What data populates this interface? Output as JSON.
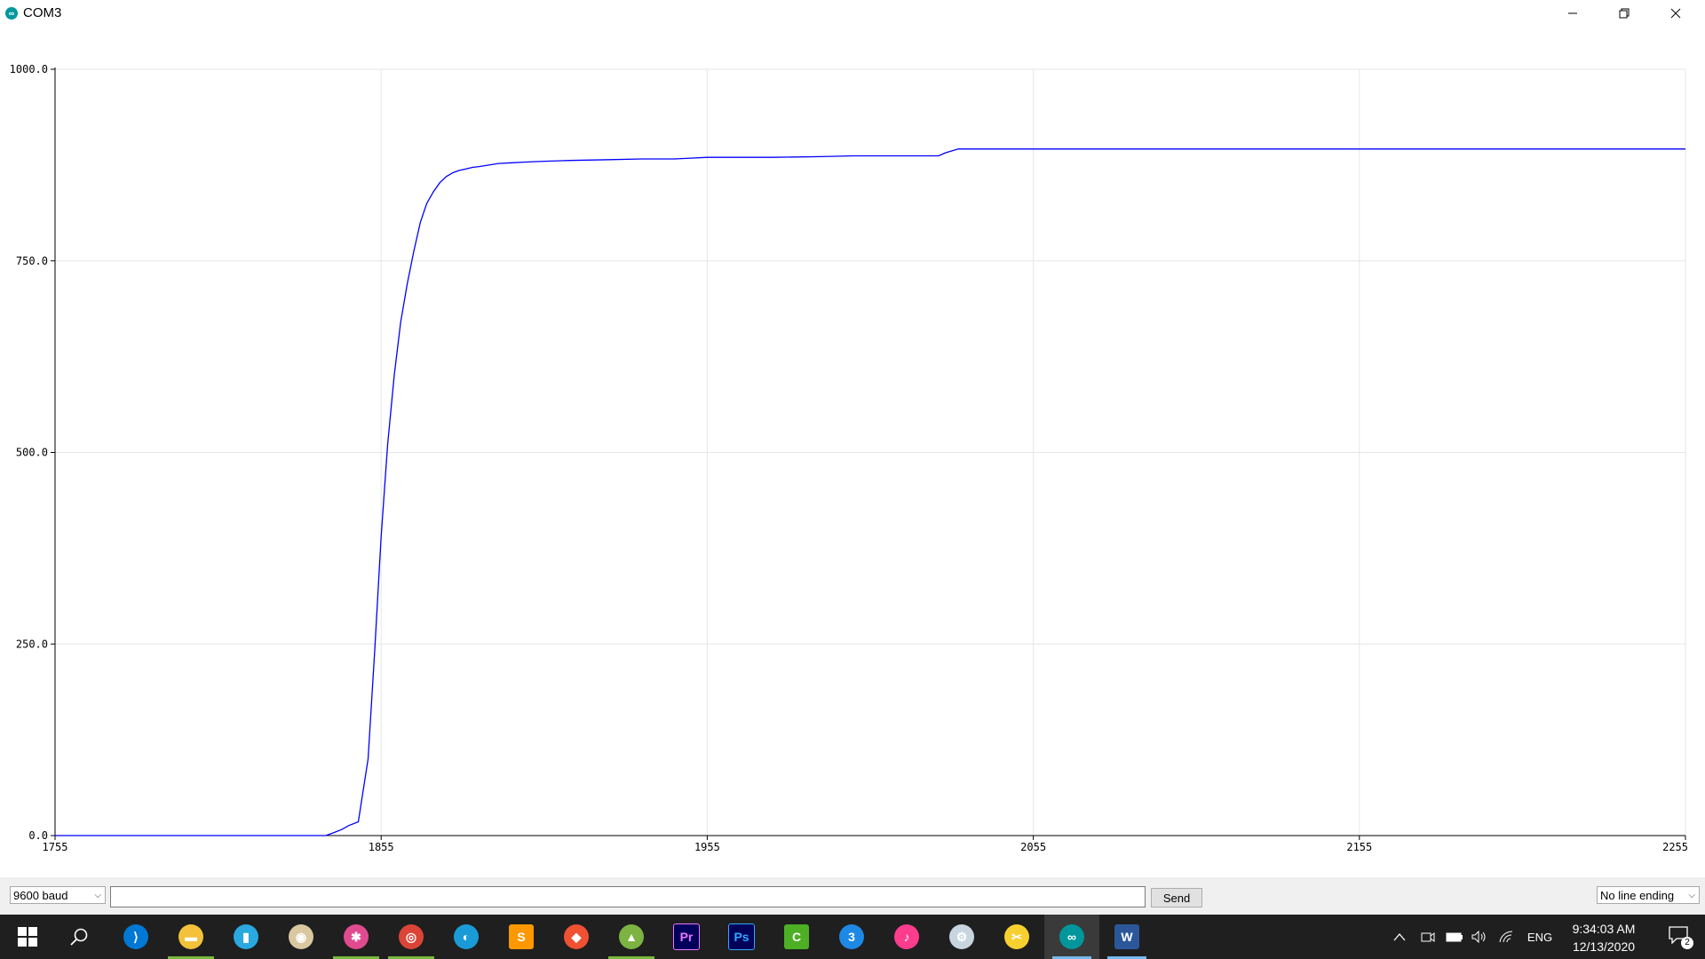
{
  "window": {
    "title": "COM3",
    "app_icon": "arduino-icon"
  },
  "chart_data": {
    "type": "line",
    "title": "",
    "xlim": [
      1755,
      2255
    ],
    "ylim": [
      0,
      1000
    ],
    "xticks": [
      "1755",
      "1855",
      "1955",
      "2055",
      "2155",
      "2255"
    ],
    "yticks": [
      "0.0",
      "250.0",
      "500.0",
      "750.0",
      "1000.0"
    ],
    "grid": true,
    "series": [
      {
        "name": "value",
        "color": "#0000ff",
        "x": [
          1755,
          1838,
          1840,
          1843,
          1845,
          1848,
          1851,
          1853,
          1855,
          1857,
          1859,
          1861,
          1863,
          1865,
          1867,
          1869,
          1871,
          1873,
          1875,
          1877,
          1879,
          1881,
          1883,
          1885,
          1888,
          1891,
          1895,
          1900,
          1905,
          1913,
          1925,
          1935,
          1945,
          1950,
          1955,
          1965,
          1975,
          1990,
          2000,
          2015,
          2026,
          2028,
          2032,
          2255
        ],
        "y": [
          0,
          0,
          3,
          8,
          13,
          18,
          100,
          240,
          390,
          510,
          600,
          670,
          720,
          762,
          800,
          825,
          840,
          852,
          860,
          865,
          868,
          870,
          872,
          873,
          875,
          877,
          878,
          879,
          880,
          881,
          882,
          883,
          883,
          884,
          885,
          885,
          885,
          886,
          887,
          887,
          887,
          891,
          896,
          896
        ]
      }
    ]
  },
  "controls": {
    "baud": "9600 baud",
    "input_value": "",
    "send_label": "Send",
    "line_ending": "No line ending"
  },
  "taskbar": {
    "apps": [
      {
        "name": "visual-studio-code-icon",
        "color": "#0078d4"
      },
      {
        "name": "file-explorer-icon",
        "color": "#f3c13a"
      },
      {
        "name": "clipboard-app-icon",
        "color": "#2aa8e0"
      },
      {
        "name": "paint-palette-icon",
        "color": "#d9c7a0"
      },
      {
        "name": "paint-3d-icon",
        "color": "#e04b8f"
      },
      {
        "name": "chrome-icon",
        "color": "#db4437"
      },
      {
        "name": "edge-icon",
        "color": "#1a9bd7"
      },
      {
        "name": "sublime-text-icon",
        "color": "#ff9800"
      },
      {
        "name": "git-icon",
        "color": "#f05133"
      },
      {
        "name": "image-viewer-icon",
        "color": "#7cb342"
      },
      {
        "name": "premiere-pro-icon",
        "color": "#ea77ff"
      },
      {
        "name": "photoshop-icon",
        "color": "#31a8ff"
      },
      {
        "name": "camtasia-icon",
        "color": "#4caf24"
      },
      {
        "name": "number-3-app-icon",
        "color": "#1e88e5"
      },
      {
        "name": "itunes-icon",
        "color": "#fc3c8d"
      },
      {
        "name": "steam-icon",
        "color": "#c7d5e0"
      },
      {
        "name": "tools-app-icon",
        "color": "#f6d02f"
      },
      {
        "name": "arduino-icon",
        "color": "#00979c"
      },
      {
        "name": "word-icon",
        "color": "#2b579a"
      }
    ],
    "language": "ENG",
    "time": "9:34:03 AM",
    "date": "12/13/2020",
    "notification_count": "2"
  }
}
